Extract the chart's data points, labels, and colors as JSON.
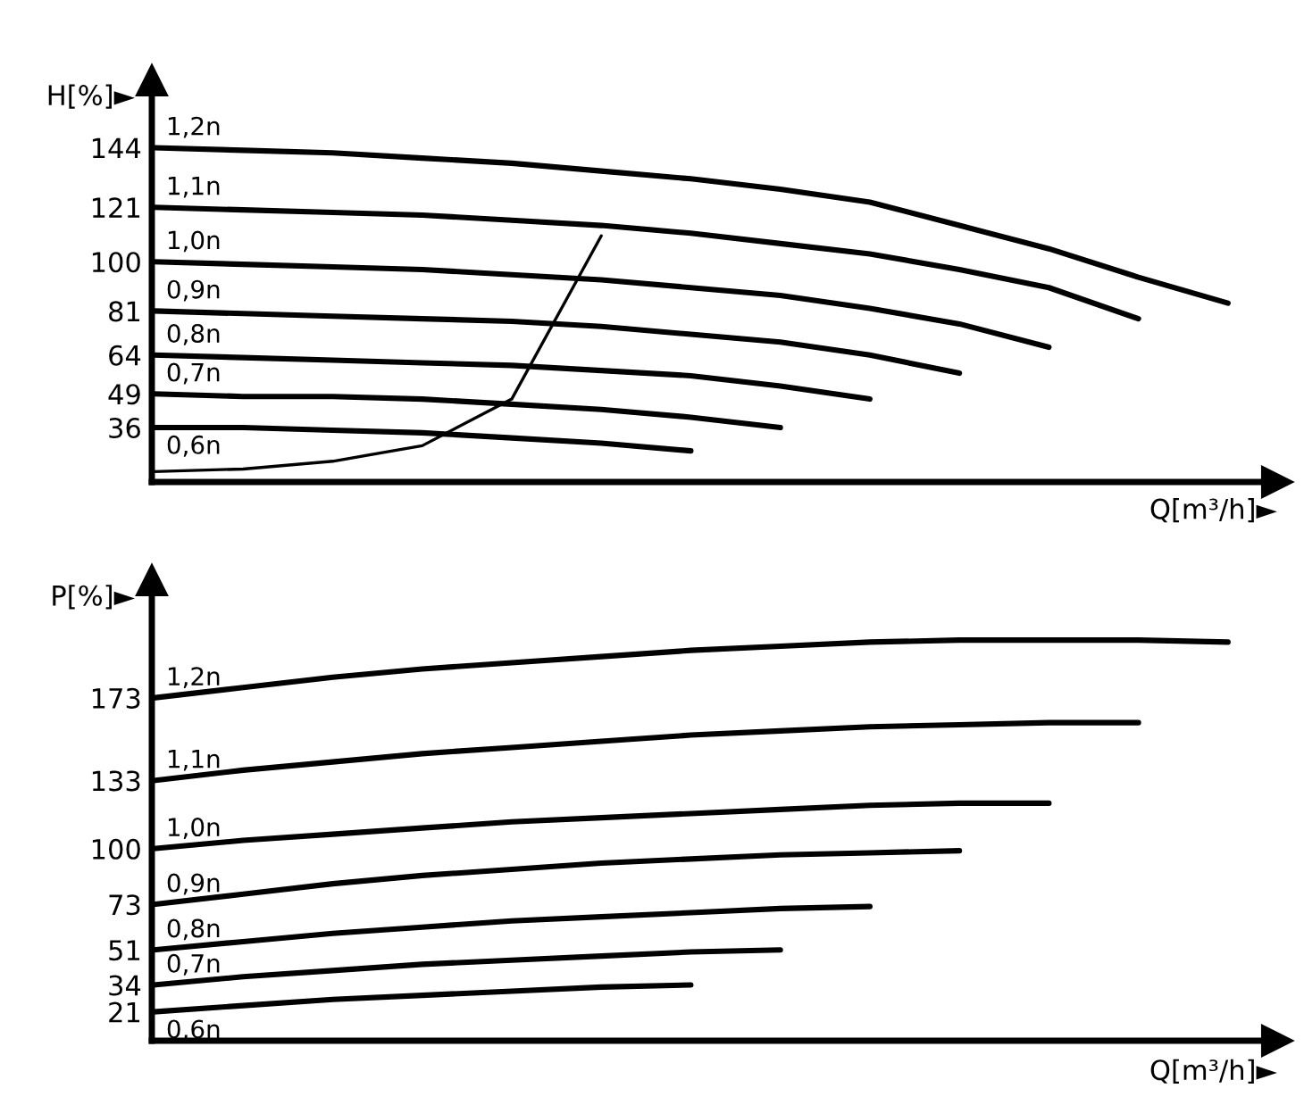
{
  "chart_data": [
    {
      "type": "line",
      "ylabel": "H[%]►",
      "xlabel": "Q[m³/h]►",
      "categories": [
        null,
        null,
        null,
        null,
        null,
        null,
        null,
        null,
        null,
        null,
        null,
        null,
        null
      ],
      "ylim": [
        15,
        170
      ],
      "yticks": [
        36,
        49,
        64,
        81,
        100,
        121,
        144
      ],
      "grid": false,
      "tick_labels": "y",
      "line_style": "solid",
      "series": [
        {
          "name": "1,2n",
          "color": "#000000",
          "values": [
            144,
            143,
            142,
            140,
            138,
            135,
            132,
            128,
            123,
            114,
            105,
            94,
            84
          ]
        },
        {
          "name": "1,1n",
          "color": "#000000",
          "values": [
            121,
            120,
            119,
            118,
            116,
            114,
            111,
            107,
            103,
            97,
            90,
            78,
            null
          ]
        },
        {
          "name": "1,0n",
          "color": "#000000",
          "values": [
            100,
            99,
            98,
            97,
            95,
            93,
            90,
            87,
            82,
            76,
            67,
            null,
            null
          ]
        },
        {
          "name": "0,9n",
          "color": "#000000",
          "values": [
            81,
            80,
            79,
            78,
            77,
            75,
            72,
            69,
            64,
            57,
            null,
            null,
            null
          ]
        },
        {
          "name": "0,8n",
          "color": "#000000",
          "values": [
            64,
            63,
            62,
            61,
            60,
            58,
            56,
            52,
            47,
            null,
            null,
            null,
            null
          ]
        },
        {
          "name": "0,7n",
          "color": "#000000",
          "values": [
            49,
            48,
            48,
            47,
            45,
            43,
            40,
            36,
            null,
            null,
            null,
            null,
            null
          ]
        },
        {
          "name": "0,6n",
          "color": "#000000",
          "values": [
            36,
            36,
            35,
            34,
            32,
            30,
            27,
            null,
            null,
            null,
            null,
            null,
            null
          ]
        },
        {
          "color": "#000000",
          "values": [
            19,
            20,
            23,
            29,
            47,
            110,
            null,
            null,
            null,
            null,
            null,
            null,
            null
          ]
        }
      ]
    },
    {
      "type": "line",
      "ylabel": "P[%]►",
      "xlabel": "Q[m³/h]►",
      "categories": [
        null,
        null,
        null,
        null,
        null,
        null,
        null,
        null,
        null,
        null,
        null,
        null,
        null
      ],
      "ylim": [
        7,
        230
      ],
      "yticks": [
        21,
        34,
        51,
        73,
        100,
        133,
        173
      ],
      "grid": false,
      "tick_labels": "y",
      "line_style": "solid",
      "series": [
        {
          "name": "1,2n",
          "color": "#000000",
          "values": [
            173,
            178,
            183,
            187,
            190,
            193,
            196,
            198,
            200,
            201,
            201,
            201,
            200
          ]
        },
        {
          "name": "1,1n",
          "color": "#000000",
          "values": [
            133,
            138,
            142,
            146,
            149,
            152,
            155,
            157,
            159,
            160,
            161,
            161,
            null
          ]
        },
        {
          "name": "1,0n",
          "color": "#000000",
          "values": [
            100,
            104,
            107,
            110,
            113,
            115,
            117,
            119,
            121,
            122,
            122,
            null,
            null
          ]
        },
        {
          "name": "0,9n",
          "color": "#000000",
          "values": [
            73,
            78,
            83,
            87,
            90,
            93,
            95,
            97,
            98,
            99,
            null,
            null,
            null
          ]
        },
        {
          "name": "0,8n",
          "color": "#000000",
          "values": [
            51,
            55,
            59,
            62,
            65,
            67,
            69,
            71,
            72,
            null,
            null,
            null,
            null
          ]
        },
        {
          "name": "0,7n",
          "color": "#000000",
          "values": [
            34,
            38,
            41,
            44,
            46,
            48,
            50,
            51,
            null,
            null,
            null,
            null,
            null
          ]
        },
        {
          "name": "0,6n",
          "color": "#000000",
          "values": [
            21,
            24,
            27,
            29,
            31,
            33,
            34,
            null,
            null,
            null,
            null,
            null,
            null
          ]
        }
      ]
    }
  ]
}
